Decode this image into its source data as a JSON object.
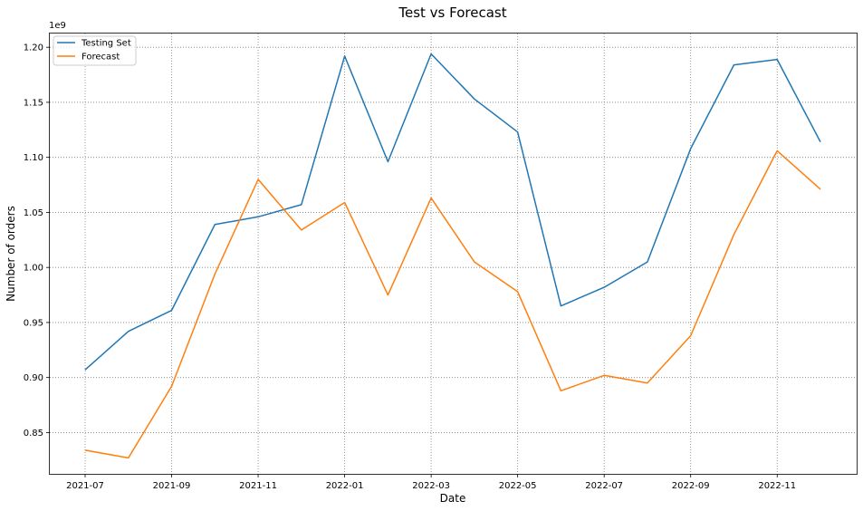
{
  "chart_data": {
    "type": "line",
    "title": "Test vs Forecast",
    "xlabel": "Date",
    "ylabel": "Number of orders",
    "y_offset_label": "1e9",
    "x": [
      "2021-07",
      "2021-08",
      "2021-09",
      "2021-10",
      "2021-11",
      "2021-12",
      "2022-01",
      "2022-02",
      "2022-03",
      "2022-04",
      "2022-05",
      "2022-06",
      "2022-07",
      "2022-08",
      "2022-09",
      "2022-10",
      "2022-11",
      "2022-12"
    ],
    "x_ticks": [
      "2021-07",
      "2021-09",
      "2021-11",
      "2022-01",
      "2022-03",
      "2022-05",
      "2022-07",
      "2022-09",
      "2022-11"
    ],
    "y_ticks": [
      "0.85",
      "0.90",
      "0.95",
      "1.00",
      "1.05",
      "1.10",
      "1.15",
      "1.20"
    ],
    "ylim": [
      0.8125,
      1.2125
    ],
    "grid": true,
    "legend_position": "top-left",
    "series": [
      {
        "name": "Testing Set",
        "color": "#1f77b4",
        "values": [
          0.907,
          0.942,
          0.961,
          1.039,
          1.046,
          1.057,
          1.192,
          1.096,
          1.194,
          1.153,
          1.123,
          0.965,
          0.982,
          1.005,
          1.108,
          1.184,
          1.189,
          1.114
        ]
      },
      {
        "name": "Forecast",
        "color": "#ff7f0e",
        "values": [
          0.834,
          0.827,
          0.892,
          0.994,
          1.08,
          1.034,
          1.059,
          0.975,
          1.063,
          1.005,
          0.978,
          0.888,
          0.902,
          0.895,
          0.938,
          1.03,
          1.106,
          1.071
        ]
      }
    ]
  }
}
